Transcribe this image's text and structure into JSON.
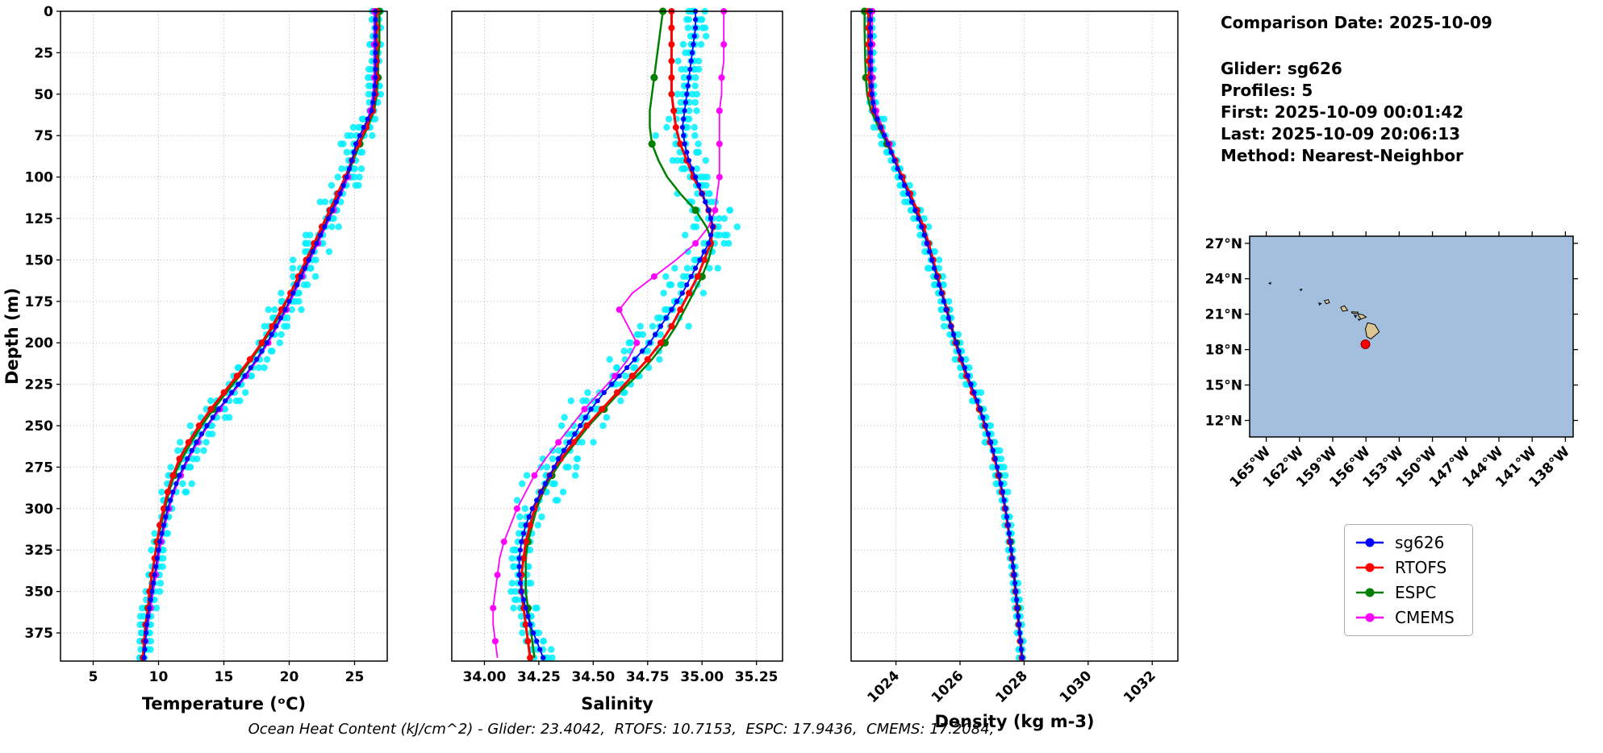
{
  "info": {
    "date_line": "Comparison Date: 2025-10-09",
    "lines": [
      "Glider: sg626",
      "Profiles: 5",
      "First: 2025-10-09 00:01:42",
      "Last: 2025-10-09 20:06:13",
      "Method: Nearest-Neighbor"
    ]
  },
  "footer": {
    "text": "Ocean Heat Content (kJ/cm^2) - Glider: 23.4042,  RTOFS: 10.7153,  ESPC: 17.9436,  CMEMS: 17.2084,"
  },
  "ocean_heat_content": {
    "units": "kJ/cm^2",
    "Glider": 23.4042,
    "RTOFS": 10.7153,
    "ESPC": 17.9436,
    "CMEMS": 17.2084
  },
  "legend": {
    "items": [
      {
        "label": "sg626",
        "color": "#0000ff"
      },
      {
        "label": "RTOFS",
        "color": "#ff0000"
      },
      {
        "label": "ESPC",
        "color": "#008000"
      },
      {
        "label": "CMEMS",
        "color": "#ff00ff"
      }
    ]
  },
  "colors": {
    "scatter": "#00efff",
    "ocean": "#a3bfdd",
    "land": "#dcc692",
    "grid": "#b8b8b8",
    "glider_marker": "#ff0000"
  },
  "chart_data": [
    {
      "type": "line",
      "id": "temperature",
      "xlabel": "Temperature (ᵒC)",
      "ylabel": "Depth (m)",
      "xlim": [
        2.5,
        27.5
      ],
      "depth_max": 392,
      "xticks": [
        5,
        10,
        15,
        20,
        25
      ],
      "xtick_labels": [
        "5",
        "10",
        "15",
        "20",
        "25"
      ],
      "yticks": [
        0,
        25,
        50,
        75,
        100,
        125,
        150,
        175,
        200,
        225,
        250,
        275,
        300,
        325,
        350,
        375
      ],
      "scatter_amp": 0.4,
      "depths": [
        0,
        10,
        20,
        30,
        40,
        50,
        60,
        70,
        80,
        90,
        100,
        110,
        120,
        130,
        140,
        150,
        160,
        170,
        180,
        190,
        200,
        210,
        220,
        230,
        240,
        250,
        260,
        270,
        280,
        290,
        300,
        310,
        320,
        330,
        340,
        350,
        360,
        370,
        380,
        390
      ],
      "series": [
        {
          "name": "sg626",
          "color": "#0000ff",
          "values": [
            26.6,
            26.6,
            26.6,
            26.6,
            26.6,
            26.5,
            26.3,
            25.7,
            25.1,
            24.8,
            24.4,
            23.9,
            23.3,
            22.7,
            22.1,
            21.5,
            20.9,
            20.3,
            19.7,
            19.0,
            18.3,
            17.5,
            16.6,
            15.6,
            14.6,
            13.7,
            12.9,
            12.2,
            11.6,
            11.1,
            10.7,
            10.4,
            10.1,
            9.9,
            9.7,
            9.5,
            9.3,
            9.1,
            9.0,
            8.9
          ]
        },
        {
          "name": "RTOFS",
          "color": "#ff0000",
          "values": [
            26.7,
            26.7,
            26.7,
            26.7,
            26.7,
            26.6,
            26.4,
            25.9,
            25.3,
            24.8,
            24.3,
            23.7,
            23.1,
            22.5,
            21.9,
            21.3,
            20.7,
            20.1,
            19.4,
            18.7,
            17.9,
            17.0,
            16.0,
            15.0,
            14.0,
            13.1,
            12.3,
            11.6,
            11.1,
            10.7,
            10.4,
            10.1,
            9.9,
            9.7,
            9.5,
            9.3,
            9.2,
            9.0,
            8.9,
            8.8
          ]
        },
        {
          "name": "ESPC",
          "color": "#008000",
          "values": [
            26.9,
            26.9,
            26.9,
            26.8,
            26.8,
            26.7,
            26.5,
            26.0,
            25.4,
            24.9,
            24.4,
            23.8,
            23.2,
            22.6,
            22.0,
            21.4,
            20.8,
            20.1,
            19.5,
            18.8,
            18.0,
            17.1,
            16.2,
            15.2,
            14.2,
            13.3,
            12.5,
            11.8,
            11.2,
            10.8,
            10.5,
            10.2,
            9.9,
            9.7,
            9.5,
            9.4,
            9.2,
            9.1,
            8.9,
            8.8
          ]
        },
        {
          "name": "CMEMS",
          "color": "#ff00ff",
          "values": [
            26.5,
            26.5,
            26.5,
            26.5,
            26.5,
            26.4,
            26.2,
            25.8,
            25.3,
            24.9,
            24.5,
            24.0,
            23.4,
            22.8,
            22.2,
            21.6,
            21.0,
            20.4,
            19.8,
            19.1,
            18.4,
            17.6,
            16.7,
            15.7,
            14.7,
            13.8,
            13.0,
            12.3,
            11.7,
            11.2,
            10.8,
            10.5,
            10.2,
            10.0,
            9.8,
            9.6,
            9.4,
            9.2,
            9.0,
            8.9
          ]
        }
      ]
    },
    {
      "type": "line",
      "id": "salinity",
      "xlabel": "Salinity",
      "ylabel": "",
      "xlim": [
        33.85,
        35.37
      ],
      "depth_max": 392,
      "xticks": [
        34.0,
        34.25,
        34.5,
        34.75,
        35.0,
        35.25
      ],
      "xtick_labels": [
        "34.00",
        "34.25",
        "34.50",
        "34.75",
        "35.00",
        "35.25"
      ],
      "yticks": [
        0,
        25,
        50,
        75,
        100,
        125,
        150,
        175,
        200,
        225,
        250,
        275,
        300,
        325,
        350,
        375
      ],
      "scatter_amp": 0.04,
      "depths": [
        0,
        10,
        20,
        30,
        40,
        50,
        60,
        70,
        80,
        90,
        100,
        110,
        120,
        130,
        140,
        150,
        160,
        170,
        180,
        190,
        200,
        210,
        220,
        230,
        240,
        250,
        260,
        270,
        280,
        290,
        300,
        310,
        320,
        330,
        340,
        350,
        360,
        370,
        380,
        390
      ],
      "series": [
        {
          "name": "sg626",
          "color": "#0000ff",
          "values": [
            34.97,
            34.97,
            34.96,
            34.95,
            34.94,
            34.93,
            34.92,
            34.91,
            34.92,
            34.94,
            34.97,
            35.0,
            35.03,
            35.05,
            35.03,
            34.99,
            34.95,
            34.91,
            34.86,
            34.81,
            34.76,
            34.69,
            34.62,
            34.55,
            34.49,
            34.44,
            34.39,
            34.34,
            34.3,
            34.26,
            34.22,
            34.19,
            34.17,
            34.16,
            34.16,
            34.17,
            34.19,
            34.21,
            34.24,
            34.27
          ]
        },
        {
          "name": "RTOFS",
          "color": "#ff0000",
          "values": [
            34.86,
            34.86,
            34.86,
            34.86,
            34.86,
            34.86,
            34.87,
            34.88,
            34.9,
            34.93,
            34.96,
            35.0,
            35.03,
            35.05,
            35.04,
            35.01,
            34.98,
            34.94,
            34.9,
            34.86,
            34.81,
            34.75,
            34.68,
            34.61,
            34.54,
            34.47,
            34.41,
            34.35,
            34.3,
            34.26,
            34.23,
            34.21,
            34.19,
            34.18,
            34.17,
            34.17,
            34.18,
            34.19,
            34.2,
            34.21
          ]
        },
        {
          "name": "ESPC",
          "color": "#008000",
          "values": [
            34.82,
            34.81,
            34.8,
            34.79,
            34.78,
            34.77,
            34.76,
            34.76,
            34.77,
            34.8,
            34.84,
            34.9,
            34.97,
            35.02,
            35.05,
            35.03,
            35.0,
            34.96,
            34.92,
            34.88,
            34.83,
            34.77,
            34.7,
            34.62,
            34.55,
            34.48,
            34.42,
            34.36,
            34.31,
            34.27,
            34.24,
            34.22,
            34.2,
            34.19,
            34.19,
            34.19,
            34.2,
            34.21,
            34.22,
            34.23
          ]
        },
        {
          "name": "CMEMS",
          "color": "#ff00ff",
          "values": [
            35.1,
            35.1,
            35.1,
            35.1,
            35.09,
            35.09,
            35.08,
            35.08,
            35.08,
            35.08,
            35.08,
            35.07,
            35.06,
            35.03,
            34.97,
            34.88,
            34.78,
            34.68,
            34.62,
            34.66,
            34.7,
            34.66,
            34.6,
            34.53,
            34.46,
            34.4,
            34.34,
            34.28,
            34.23,
            34.19,
            34.15,
            34.12,
            34.09,
            34.07,
            34.06,
            34.05,
            34.04,
            34.04,
            34.05,
            34.06
          ]
        }
      ]
    },
    {
      "type": "line",
      "id": "density",
      "xlabel": "Density (kg m-3)",
      "ylabel": "",
      "xlim": [
        1022.6,
        1032.8
      ],
      "depth_max": 392,
      "xticks": [
        1024,
        1026,
        1028,
        1030,
        1032
      ],
      "xtick_labels": [
        "1024",
        "1026",
        "1028",
        "1030",
        "1032"
      ],
      "yticks": [
        0,
        25,
        50,
        75,
        100,
        125,
        150,
        175,
        200,
        225,
        250,
        275,
        300,
        325,
        350,
        375
      ],
      "scatter_amp": 0.07,
      "depths": [
        0,
        10,
        20,
        30,
        40,
        50,
        60,
        70,
        80,
        90,
        100,
        110,
        120,
        130,
        140,
        150,
        160,
        170,
        180,
        190,
        200,
        210,
        220,
        230,
        240,
        250,
        260,
        270,
        280,
        290,
        300,
        310,
        320,
        330,
        340,
        350,
        360,
        370,
        380,
        390
      ],
      "series": [
        {
          "name": "sg626",
          "color": "#0000ff",
          "values": [
            1023.2,
            1023.2,
            1023.21,
            1023.21,
            1023.22,
            1023.25,
            1023.32,
            1023.52,
            1023.75,
            1023.95,
            1024.15,
            1024.38,
            1024.6,
            1024.8,
            1024.97,
            1025.12,
            1025.27,
            1025.42,
            1025.57,
            1025.72,
            1025.88,
            1026.05,
            1026.24,
            1026.44,
            1026.63,
            1026.8,
            1026.96,
            1027.1,
            1027.22,
            1027.33,
            1027.42,
            1027.5,
            1027.57,
            1027.63,
            1027.69,
            1027.74,
            1027.79,
            1027.84,
            1027.89,
            1027.94
          ]
        },
        {
          "name": "RTOFS",
          "color": "#ff0000",
          "values": [
            1023.14,
            1023.14,
            1023.14,
            1023.15,
            1023.16,
            1023.2,
            1023.3,
            1023.52,
            1023.76,
            1023.98,
            1024.2,
            1024.44,
            1024.66,
            1024.86,
            1025.02,
            1025.16,
            1025.3,
            1025.44,
            1025.58,
            1025.72,
            1025.86,
            1026.02,
            1026.2,
            1026.4,
            1026.6,
            1026.78,
            1026.94,
            1027.08,
            1027.2,
            1027.31,
            1027.41,
            1027.49,
            1027.56,
            1027.62,
            1027.68,
            1027.73,
            1027.78,
            1027.83,
            1027.88,
            1027.93
          ]
        },
        {
          "name": "ESPC",
          "color": "#008000",
          "values": [
            1023.02,
            1023.02,
            1023.03,
            1023.04,
            1023.06,
            1023.1,
            1023.22,
            1023.46,
            1023.72,
            1023.96,
            1024.18,
            1024.42,
            1024.64,
            1024.84,
            1025.0,
            1025.15,
            1025.3,
            1025.45,
            1025.6,
            1025.74,
            1025.89,
            1026.05,
            1026.23,
            1026.42,
            1026.61,
            1026.79,
            1026.95,
            1027.09,
            1027.21,
            1027.32,
            1027.42,
            1027.5,
            1027.57,
            1027.64,
            1027.7,
            1027.75,
            1027.8,
            1027.85,
            1027.9,
            1027.95
          ]
        },
        {
          "name": "CMEMS",
          "color": "#ff00ff",
          "values": [
            1023.26,
            1023.26,
            1023.26,
            1023.26,
            1023.27,
            1023.3,
            1023.38,
            1023.58,
            1023.8,
            1024.0,
            1024.2,
            1024.42,
            1024.63,
            1024.82,
            1024.98,
            1025.13,
            1025.28,
            1025.43,
            1025.58,
            1025.73,
            1025.88,
            1026.04,
            1026.22,
            1026.41,
            1026.6,
            1026.77,
            1026.93,
            1027.07,
            1027.19,
            1027.3,
            1027.4,
            1027.48,
            1027.55,
            1027.62,
            1027.68,
            1027.73,
            1027.78,
            1027.83,
            1027.88,
            1027.93
          ]
        }
      ]
    },
    {
      "type": "map",
      "id": "location-map",
      "extent": {
        "lon": [
          -166.5,
          -137.3
        ],
        "lat": [
          10.6,
          27.6
        ]
      },
      "lon_ticks": [
        -165,
        -162,
        -159,
        -156,
        -153,
        -150,
        -147,
        -144,
        -141,
        -138
      ],
      "lon_tick_labels": [
        "165°W",
        "162°W",
        "159°W",
        "156°W",
        "153°W",
        "150°W",
        "147°W",
        "144°W",
        "141°W",
        "138°W"
      ],
      "lat_ticks": [
        27,
        24,
        21,
        18,
        15,
        12
      ],
      "lat_tick_labels": [
        "27°N",
        "24°N",
        "21°N",
        "18°N",
        "15°N",
        "12°N"
      ],
      "islands": [
        [
          [
            -164.75,
            23.62
          ],
          [
            -164.6,
            23.68
          ],
          [
            -164.62,
            23.55
          ]
        ],
        [
          [
            -161.95,
            23.08
          ],
          [
            -161.8,
            23.12
          ],
          [
            -161.85,
            23.0
          ]
        ],
        [
          [
            -160.25,
            21.95
          ],
          [
            -160.05,
            21.9
          ],
          [
            -160.2,
            21.78
          ]
        ],
        [
          [
            -159.75,
            22.15
          ],
          [
            -159.4,
            22.23
          ],
          [
            -159.3,
            21.97
          ],
          [
            -159.6,
            21.88
          ]
        ],
        [
          [
            -158.28,
            21.58
          ],
          [
            -157.95,
            21.71
          ],
          [
            -157.65,
            21.32
          ],
          [
            -158.1,
            21.25
          ]
        ],
        [
          [
            -157.3,
            21.2
          ],
          [
            -156.7,
            21.17
          ],
          [
            -156.75,
            21.05
          ],
          [
            -157.25,
            21.08
          ]
        ],
        [
          [
            -157.05,
            20.92
          ],
          [
            -156.85,
            20.88
          ],
          [
            -156.95,
            20.72
          ]
        ],
        [
          [
            -156.7,
            21.02
          ],
          [
            -156.25,
            20.94
          ],
          [
            -155.98,
            20.75
          ],
          [
            -156.45,
            20.58
          ],
          [
            -156.68,
            20.88
          ]
        ],
        [
          [
            -156.7,
            20.58
          ],
          [
            -156.53,
            20.55
          ],
          [
            -156.62,
            20.48
          ]
        ],
        [
          [
            -155.85,
            20.27
          ],
          [
            -155.2,
            20.12
          ],
          [
            -154.8,
            19.5
          ],
          [
            -155.55,
            18.9
          ],
          [
            -155.92,
            19.08
          ],
          [
            -156.05,
            19.75
          ]
        ]
      ],
      "glider_position": {
        "lon": -156.05,
        "lat": 18.45
      }
    }
  ]
}
